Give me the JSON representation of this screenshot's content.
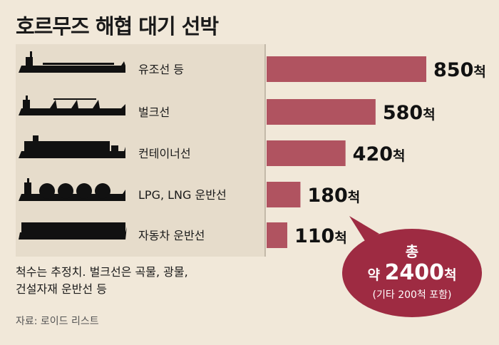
{
  "title": "호르무즈 해협 대기 선박",
  "chart_data": {
    "type": "bar",
    "orientation": "horizontal",
    "categories": [
      "유조선 등",
      "벌크선",
      "컨테이너선",
      "LPG, LNG 운반선",
      "자동차 운반선"
    ],
    "values": [
      850,
      580,
      420,
      180,
      110
    ],
    "value_unit": "척",
    "bar_color": "#b05360"
  },
  "total": {
    "line1": "총",
    "prefix": "약 ",
    "value": "2400",
    "unit": "척",
    "line3": "(기타 200척 포함)"
  },
  "note_lines": [
    "척수는 추정치. 벌크선은 곡물, 광물,",
    "건설자재 운반선 등"
  ],
  "source": "자료: 로이드 리스트"
}
